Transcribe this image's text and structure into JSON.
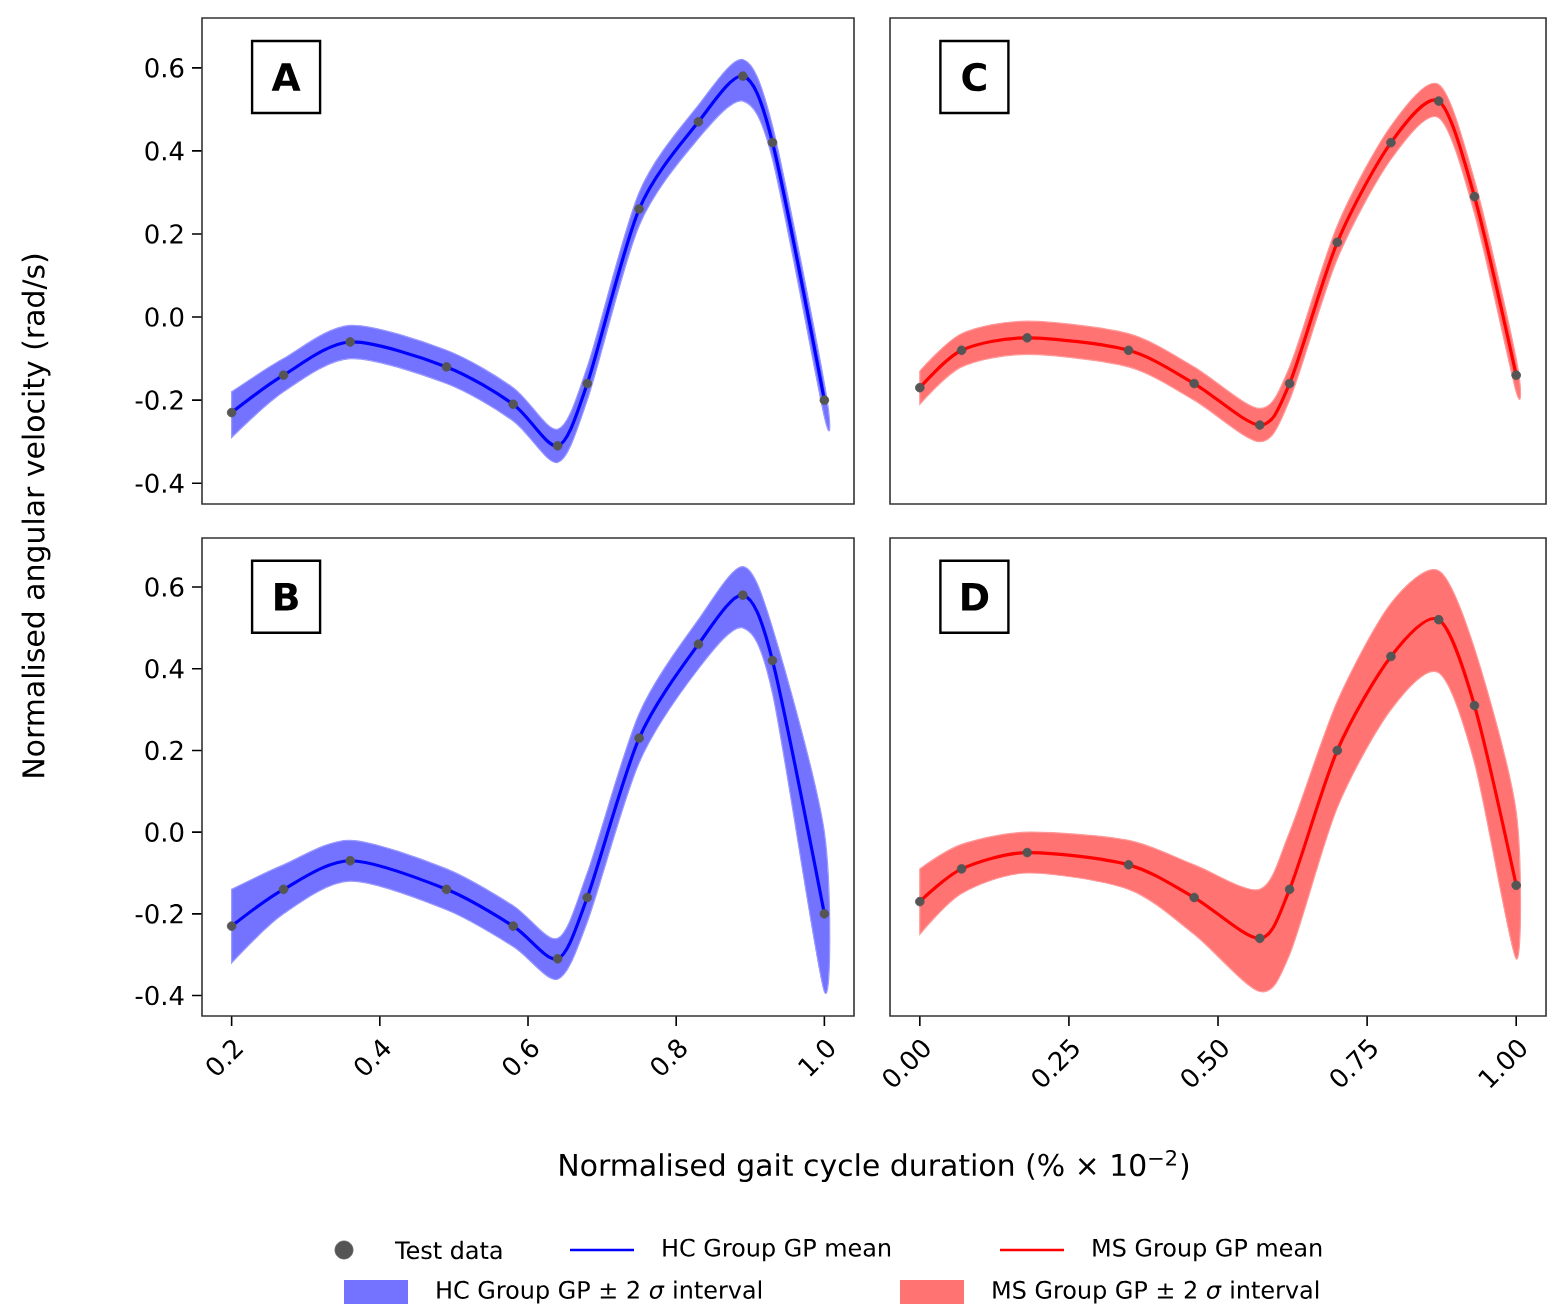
{
  "chart_data": [
    {
      "type": "line",
      "title": "A",
      "ylabel": "Normalised angular velocity (rad/s)",
      "legend": "bottom",
      "tick_labels": "y",
      "annotations": [
        "HC Group GP ± 2 *σ* interval"
      ],
      "x": [
        0.2,
        0.27,
        0.36,
        0.49,
        0.58,
        0.64,
        0.68,
        0.75,
        0.83,
        0.89,
        0.93,
        1.0
      ],
      "xlim": [
        0.16,
        1.04
      ],
      "ylim": [
        -0.45,
        0.72
      ],
      "yticks": [
        -0.4,
        -0.2,
        {
          "value": 0,
          "label": "0.0"
        },
        0.2,
        0.4,
        0.6
      ],
      "series": [
        {
          "name": "Test data",
          "type": "scatter",
          "marker": "circle",
          "color": "#555555",
          "values": [
            -0.23,
            -0.14,
            -0.06,
            -0.12,
            -0.21,
            -0.31,
            -0.16,
            0.26,
            0.47,
            0.58,
            0.42,
            -0.2
          ]
        },
        {
          "name": "HC Group GP mean",
          "type": "line",
          "color": "#0000ff",
          "values": [
            -0.23,
            -0.14,
            -0.06,
            -0.12,
            -0.21,
            -0.31,
            -0.16,
            0.26,
            0.47,
            0.58,
            0.42,
            -0.2
          ],
          "lower": [
            -0.29,
            -0.18,
            -0.1,
            -0.16,
            -0.25,
            -0.35,
            -0.2,
            0.22,
            0.43,
            0.52,
            0.38,
            -0.24
          ],
          "upper": [
            -0.18,
            -0.1,
            -0.02,
            -0.08,
            -0.17,
            -0.27,
            -0.12,
            0.3,
            0.51,
            0.62,
            0.46,
            -0.16
          ]
        }
      ]
    },
    {
      "type": "line",
      "title": "C",
      "legend": "bottom",
      "tick_labels": false,
      "annotations": [
        "MS Group GP ± 2 *σ* interval"
      ],
      "x": [
        0,
        0.07,
        0.18,
        0.35,
        0.46,
        0.57,
        0.62,
        0.7,
        0.79,
        0.87,
        0.93,
        1.0
      ],
      "xlim": [
        -0.05,
        1.05
      ],
      "ylim": [
        -0.45,
        0.72
      ],
      "series": [
        {
          "type": "scatter",
          "marker": "circle",
          "color": "#555555",
          "values": [
            -0.17,
            -0.08,
            -0.05,
            -0.08,
            -0.16,
            -0.26,
            -0.16,
            0.18,
            0.42,
            0.52,
            0.29,
            -0.14
          ]
        },
        {
          "name": "MS Group GP mean",
          "type": "line",
          "color": "#ff0000",
          "values": [
            -0.17,
            -0.08,
            -0.05,
            -0.08,
            -0.16,
            -0.26,
            -0.16,
            0.18,
            0.42,
            0.52,
            0.29,
            -0.14
          ],
          "lower": [
            -0.21,
            -0.12,
            -0.09,
            -0.12,
            -0.2,
            -0.3,
            -0.2,
            0.14,
            0.38,
            0.48,
            0.25,
            -0.18
          ],
          "upper": [
            -0.13,
            -0.04,
            -0.01,
            -0.04,
            -0.12,
            -0.22,
            -0.12,
            0.22,
            0.46,
            0.56,
            0.33,
            -0.1
          ]
        }
      ]
    },
    {
      "type": "line",
      "title": "B",
      "xlabel": "Normalised gait cycle duration (% × 10$^{−2}$)",
      "x": [
        0.2,
        0.27,
        0.36,
        0.49,
        0.58,
        0.64,
        0.68,
        0.75,
        0.83,
        0.89,
        0.93,
        1.0
      ],
      "xlim": [
        0.16,
        1.04
      ],
      "ylim": [
        -0.45,
        0.72
      ],
      "xticks": [
        0.2,
        0.4,
        0.6,
        0.8,
        {
          "value": 1,
          "label": "1.0"
        }
      ],
      "yticks": [
        -0.4,
        -0.2,
        {
          "value": 0,
          "label": "0.0"
        },
        0.2,
        0.4,
        0.6
      ],
      "series": [
        {
          "type": "scatter",
          "marker": "circle",
          "color": "#555555",
          "values": [
            -0.23,
            -0.14,
            -0.07,
            -0.14,
            -0.23,
            -0.31,
            -0.16,
            0.23,
            0.46,
            0.58,
            0.42,
            -0.2
          ]
        },
        {
          "type": "line",
          "color": "#0000ff",
          "values": [
            -0.23,
            -0.14,
            -0.07,
            -0.14,
            -0.23,
            -0.31,
            -0.16,
            0.23,
            0.46,
            0.58,
            0.42,
            -0.2
          ],
          "lower": [
            -0.32,
            -0.2,
            -0.12,
            -0.19,
            -0.28,
            -0.36,
            -0.22,
            0.17,
            0.4,
            0.5,
            0.34,
            -0.39
          ],
          "upper": [
            -0.14,
            -0.08,
            -0.02,
            -0.09,
            -0.18,
            -0.26,
            -0.1,
            0.29,
            0.52,
            0.65,
            0.5,
            0.0
          ]
        }
      ]
    },
    {
      "type": "line",
      "title": "D",
      "tick_labels": "x",
      "x": [
        0,
        0.07,
        0.18,
        0.35,
        0.46,
        0.57,
        0.62,
        0.7,
        0.79,
        0.87,
        0.93,
        1.0
      ],
      "xlim": [
        -0.05,
        1.05
      ],
      "ylim": [
        -0.45,
        0.72
      ],
      "xticks": [
        {
          "value": 0,
          "label": "0.00"
        },
        {
          "value": 0.25,
          "label": "0.25"
        },
        {
          "value": 0.5,
          "label": "0.50"
        },
        {
          "value": 0.75,
          "label": "0.75"
        },
        {
          "value": 1,
          "label": "1.00"
        }
      ],
      "series": [
        {
          "type": "scatter",
          "marker": "circle",
          "color": "#555555",
          "values": [
            -0.17,
            -0.09,
            -0.05,
            -0.08,
            -0.16,
            -0.26,
            -0.14,
            0.2,
            0.43,
            0.52,
            0.31,
            -0.13
          ]
        },
        {
          "type": "line",
          "color": "#ff0000",
          "values": [
            -0.17,
            -0.09,
            -0.05,
            -0.08,
            -0.16,
            -0.26,
            -0.14,
            0.2,
            0.43,
            0.52,
            0.31,
            -0.13
          ],
          "lower": [
            -0.25,
            -0.15,
            -0.1,
            -0.14,
            -0.25,
            -0.39,
            -0.3,
            0.06,
            0.3,
            0.39,
            0.17,
            -0.31
          ],
          "upper": [
            -0.09,
            -0.03,
            0.0,
            -0.02,
            -0.08,
            -0.14,
            0.0,
            0.32,
            0.56,
            0.64,
            0.45,
            0.05
          ]
        }
      ]
    }
  ]
}
